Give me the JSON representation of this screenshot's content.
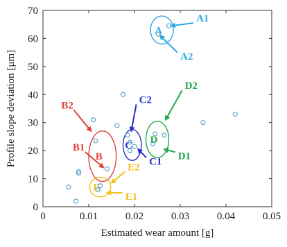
{
  "chart_data": {
    "type": "scatter",
    "title": "",
    "xlabel": "Estimated wear amount [g]",
    "ylabel": "Profile slope deviation [μm]",
    "xlim": [
      0,
      0.05
    ],
    "ylim": [
      0,
      70
    ],
    "xticks": [
      0,
      0.01,
      0.02,
      0.03,
      0.04,
      0.05
    ],
    "yticks": [
      0,
      10,
      20,
      30,
      40,
      50,
      60,
      70
    ],
    "xtick_labels": [
      "0",
      "0.01",
      "0.02",
      "0.03",
      "0.04",
      "0.05"
    ],
    "ytick_labels": [
      "0",
      "10",
      "20",
      "30",
      "40",
      "50",
      "60",
      "70"
    ],
    "grid": false,
    "marker_color": "#4f9fc8",
    "points": [
      {
        "x": 0.0056,
        "y": 7.0
      },
      {
        "x": 0.0072,
        "y": 2.0
      },
      {
        "x": 0.0078,
        "y": 12.0
      },
      {
        "x": 0.0078,
        "y": 12.5
      },
      {
        "x": 0.011,
        "y": 31.0
      },
      {
        "x": 0.0115,
        "y": 23.5
      },
      {
        "x": 0.012,
        "y": 6.0
      },
      {
        "x": 0.0125,
        "y": 7.5
      },
      {
        "x": 0.014,
        "y": 13.5
      },
      {
        "x": 0.0162,
        "y": 29.0
      },
      {
        "x": 0.0175,
        "y": 40.0
      },
      {
        "x": 0.0185,
        "y": 25.5
      },
      {
        "x": 0.019,
        "y": 23.0
      },
      {
        "x": 0.019,
        "y": 20.0
      },
      {
        "x": 0.02,
        "y": 21.5
      },
      {
        "x": 0.024,
        "y": 22.5
      },
      {
        "x": 0.0245,
        "y": 26.0
      },
      {
        "x": 0.0265,
        "y": 25.5
      },
      {
        "x": 0.0252,
        "y": 61.5
      },
      {
        "x": 0.0275,
        "y": 64.5
      },
      {
        "x": 0.035,
        "y": 30.0
      },
      {
        "x": 0.042,
        "y": 33.0
      }
    ],
    "groups": [
      {
        "label": "A",
        "color": "#29a8df",
        "cx": 0.026,
        "cy": 63.0,
        "rx": 0.0025,
        "ry": 5.0
      },
      {
        "label": "B",
        "color": "#e0403a",
        "cx": 0.013,
        "cy": 18.0,
        "rx": 0.003,
        "ry": 9.0
      },
      {
        "label": "C",
        "color": "#2a2fc8",
        "cx": 0.0195,
        "cy": 22.0,
        "rx": 0.002,
        "ry": 5.5
      },
      {
        "label": "D",
        "color": "#21a84a",
        "cx": 0.025,
        "cy": 24.0,
        "rx": 0.0025,
        "ry": 6.5
      },
      {
        "label": "E",
        "color": "#f0c020",
        "cx": 0.0125,
        "cy": 7.0,
        "rx": 0.0023,
        "ry": 3.5
      }
    ],
    "annotations": [
      {
        "text": "A1",
        "color": "#29a8df",
        "tx": 0.0335,
        "ty": 66.0,
        "ax": 0.028,
        "ay": 64.5
      },
      {
        "text": "A2",
        "color": "#29a8df",
        "tx": 0.03,
        "ty": 52.5,
        "ax": 0.0256,
        "ay": 61.0
      },
      {
        "text": "B2",
        "color": "#e0403a",
        "tx": 0.004,
        "ty": 35.0,
        "ax": 0.0105,
        "ay": 27.0
      },
      {
        "text": "B1",
        "color": "#e0403a",
        "tx": 0.0065,
        "ty": 20.0,
        "ax": 0.0132,
        "ay": 14.0
      },
      {
        "text": "C2",
        "color": "#2a2fc8",
        "tx": 0.021,
        "ty": 37.0,
        "ax": 0.0193,
        "ay": 27.0
      },
      {
        "text": "C1",
        "color": "#2a2fc8",
        "tx": 0.0232,
        "ty": 15.0,
        "ax": 0.0208,
        "ay": 20.5
      },
      {
        "text": "D2",
        "color": "#21a84a",
        "tx": 0.031,
        "ty": 42.0,
        "ax": 0.0268,
        "ay": 31.0
      },
      {
        "text": "D1",
        "color": "#21a84a",
        "tx": 0.0295,
        "ty": 17.0,
        "ax": 0.0265,
        "ay": 20.5
      },
      {
        "text": "E2",
        "color": "#f0c020",
        "tx": 0.0185,
        "ty": 13.0,
        "ax": 0.015,
        "ay": 8.5
      },
      {
        "text": "E1",
        "color": "#f0c020",
        "tx": 0.018,
        "ty": 2.5,
        "ax": 0.014,
        "ay": 5.0
      }
    ]
  }
}
